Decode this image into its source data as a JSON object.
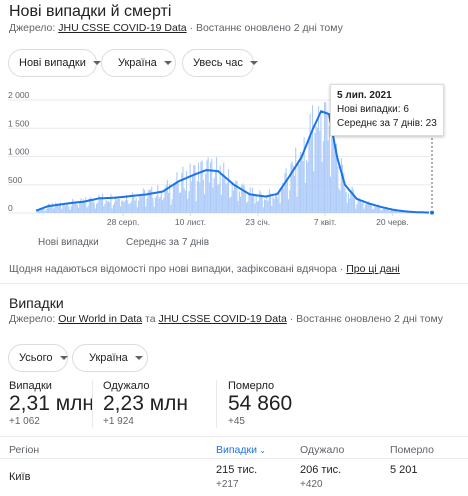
{
  "header": {
    "title": "Нові випадки й смерті",
    "source_prefix": "Джерело:",
    "source_name": "JHU CSSE COVID-19 Data",
    "updated": "Востаннє оновлено 2 дні тому"
  },
  "filters": {
    "metric": "Нові випадки",
    "country": "Україна",
    "range": "Увесь час"
  },
  "chart_data": {
    "type": "bar",
    "title": "",
    "ylim": [
      0,
      2000
    ],
    "yticks": [
      "2 000",
      "1 500",
      "1 000",
      "500",
      "0"
    ],
    "ytick_values": [
      2000,
      1500,
      1000,
      500,
      0
    ],
    "xticks": [
      {
        "label": "28 серп.",
        "pos": 0.22
      },
      {
        "label": "10 лист.",
        "pos": 0.39
      },
      {
        "label": "23 січ.",
        "pos": 0.56
      },
      {
        "label": "7 квіт.",
        "pos": 0.73
      },
      {
        "label": "20 черв.",
        "pos": 0.9
      }
    ],
    "series": [
      {
        "name": "Нові випадки",
        "color": "#aecbfa"
      },
      {
        "name": "Середнє за 7 днів",
        "color": "#1a73e8"
      }
    ],
    "avg_x": [
      0,
      0.03,
      0.08,
      0.12,
      0.16,
      0.2,
      0.24,
      0.28,
      0.32,
      0.36,
      0.4,
      0.43,
      0.46,
      0.5,
      0.54,
      0.58,
      0.61,
      0.64,
      0.67,
      0.7,
      0.72,
      0.74,
      0.76,
      0.78,
      0.81,
      0.84,
      0.87,
      0.9,
      0.93,
      0.96,
      1.0
    ],
    "avg_y": [
      40,
      120,
      170,
      200,
      260,
      270,
      300,
      330,
      380,
      560,
      680,
      760,
      740,
      500,
      330,
      290,
      340,
      650,
      980,
      1500,
      1800,
      1750,
      1000,
      500,
      250,
      170,
      110,
      60,
      30,
      15,
      6
    ],
    "tooltip": {
      "date": "5 лип. 2021",
      "new_cases_label": "Нові випадки:",
      "new_cases_value": "6",
      "avg_label": "Середнє за 7 днів:",
      "avg_value": "23"
    }
  },
  "note": {
    "text": "Щодня надаються відомості про нові випадки, зафіксовані вдячора",
    "link": "Про ці дані"
  },
  "cases": {
    "title": "Випадки",
    "source_prefix": "Джерело:",
    "source_1": "Our World in Data",
    "source_and": "та",
    "source_2": "JHU CSSE COVID-19 Data",
    "updated": "Востаннє оновлено 2 дні тому",
    "filter_type": "Усього",
    "filter_country": "Україна",
    "stats": [
      {
        "label": "Випадки",
        "value": "2,31 млн",
        "delta": "+1 062"
      },
      {
        "label": "Одужало",
        "value": "2,23 млн",
        "delta": "+1 924"
      },
      {
        "label": "Померло",
        "value": "54 860",
        "delta": "+45"
      }
    ],
    "table": {
      "headers": [
        "Регіон",
        "Випадки",
        "Одужало",
        "Померло"
      ],
      "rows": [
        {
          "region": "Київ",
          "cases": "215 тис.",
          "cases_delta": "+217",
          "recovered": "206 тис.",
          "recovered_delta": "+420",
          "deaths": "5 201"
        }
      ]
    }
  },
  "colors": {
    "accent": "#1a73e8",
    "bars": "#aecbfa",
    "flag_blue": "#0057b7",
    "flag_yellow": "#ffd700"
  }
}
